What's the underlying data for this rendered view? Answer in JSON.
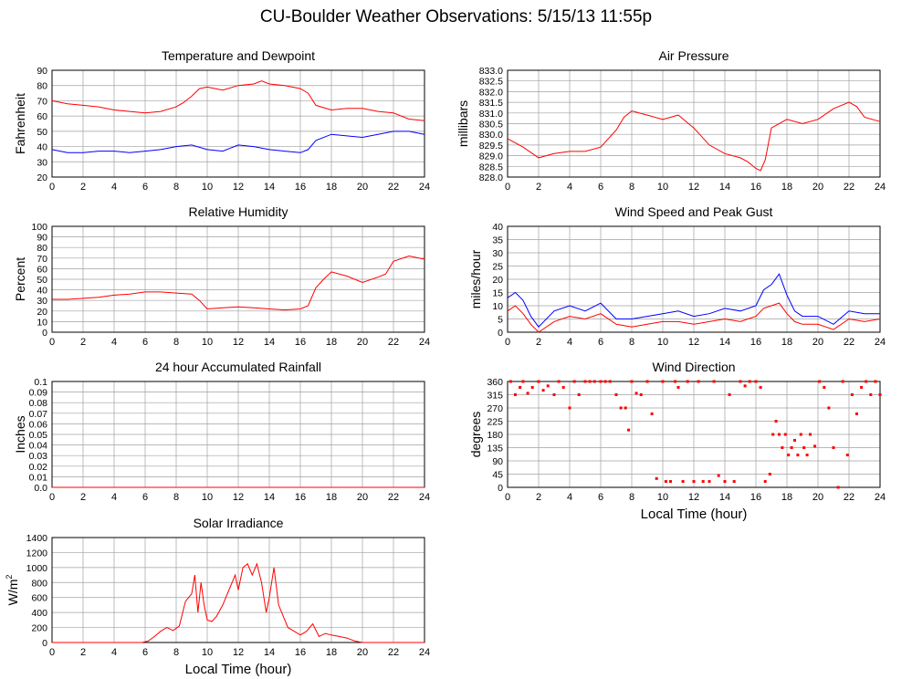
{
  "title": "CU-Boulder Weather Observations: 5/15/13 11:55p",
  "colors": {
    "red": "#ff0000",
    "blue": "#0000ff",
    "grid": "#a0a0a0",
    "axis": "#000000"
  },
  "chart_data": [
    {
      "id": "temperature",
      "type": "line",
      "title": "Temperature and Dewpoint",
      "ylabel": "Fahrenheit",
      "xlabel": "",
      "xlim": [
        0,
        24
      ],
      "ylim": [
        20,
        90
      ],
      "yticks": [
        "20",
        "30",
        "40",
        "50",
        "60",
        "70",
        "80",
        "90"
      ],
      "xticks": [
        "0",
        "2",
        "4",
        "6",
        "8",
        "10",
        "12",
        "14",
        "16",
        "18",
        "20",
        "22",
        "24"
      ],
      "grid": true,
      "series": [
        {
          "color": "#ff0000",
          "x": [
            0,
            1,
            2,
            3,
            4,
            5,
            6,
            7,
            8,
            8.5,
            9,
            9.5,
            10,
            11,
            12,
            13,
            13.5,
            14,
            15,
            16,
            16.5,
            17,
            18,
            19,
            20,
            21,
            22,
            23,
            24
          ],
          "y": [
            70,
            68,
            67,
            66,
            64,
            63,
            62,
            63,
            66,
            69,
            73,
            78,
            79,
            77,
            80,
            81,
            83,
            81,
            80,
            78,
            75,
            67,
            64,
            65,
            65,
            63,
            62,
            58,
            57
          ]
        },
        {
          "color": "#0000ff",
          "x": [
            0,
            1,
            2,
            3,
            4,
            5,
            6,
            7,
            8,
            9,
            10,
            11,
            12,
            13,
            14,
            15,
            16,
            16.5,
            17,
            18,
            19,
            20,
            21,
            22,
            23,
            24
          ],
          "y": [
            38,
            36,
            36,
            37,
            37,
            36,
            37,
            38,
            40,
            41,
            38,
            37,
            41,
            40,
            38,
            37,
            36,
            38,
            44,
            48,
            47,
            46,
            48,
            50,
            50,
            48
          ]
        }
      ]
    },
    {
      "id": "pressure",
      "type": "line",
      "title": "Air Pressure",
      "ylabel": "millibars",
      "xlabel": "",
      "xlim": [
        0,
        24
      ],
      "ylim": [
        828.0,
        833.0
      ],
      "yticks": [
        "828.0",
        "828.5",
        "829.0",
        "829.5",
        "830.0",
        "830.5",
        "831.0",
        "831.5",
        "832.0",
        "832.5",
        "833.0"
      ],
      "xticks": [
        "0",
        "2",
        "4",
        "6",
        "8",
        "10",
        "12",
        "14",
        "16",
        "18",
        "20",
        "22",
        "24"
      ],
      "grid": true,
      "series": [
        {
          "color": "#ff0000",
          "x": [
            0,
            1,
            2,
            3,
            4,
            5,
            6,
            7,
            7.5,
            8,
            9,
            10,
            11,
            12,
            13,
            14,
            15,
            15.5,
            16,
            16.3,
            16.6,
            17,
            18,
            19,
            20,
            21,
            22,
            22.5,
            23,
            24
          ],
          "y": [
            829.8,
            829.4,
            828.9,
            829.1,
            829.2,
            829.2,
            829.4,
            830.2,
            830.8,
            831.1,
            830.9,
            830.7,
            830.9,
            830.3,
            829.5,
            829.1,
            828.9,
            828.7,
            828.4,
            828.3,
            828.8,
            830.3,
            830.7,
            830.5,
            830.7,
            831.2,
            831.5,
            831.3,
            830.8,
            830.6
          ]
        }
      ]
    },
    {
      "id": "humidity",
      "type": "line",
      "title": "Relative Humidity",
      "ylabel": "Percent",
      "xlabel": "",
      "xlim": [
        0,
        24
      ],
      "ylim": [
        0,
        100
      ],
      "yticks": [
        "0",
        "10",
        "20",
        "30",
        "40",
        "50",
        "60",
        "70",
        "80",
        "90",
        "100"
      ],
      "xticks": [
        "0",
        "2",
        "4",
        "6",
        "8",
        "10",
        "12",
        "14",
        "16",
        "18",
        "20",
        "22",
        "24"
      ],
      "grid": true,
      "series": [
        {
          "color": "#ff0000",
          "x": [
            0,
            1,
            2,
            3,
            4,
            5,
            6,
            7,
            8,
            9,
            9.5,
            10,
            11,
            12,
            13,
            14,
            15,
            16,
            16.5,
            17,
            17.5,
            18,
            19,
            20,
            21,
            21.5,
            22,
            23,
            24
          ],
          "y": [
            31,
            31,
            32,
            33,
            35,
            36,
            38,
            38,
            37,
            36,
            30,
            22,
            23,
            24,
            23,
            22,
            21,
            22,
            25,
            42,
            50,
            57,
            53,
            47,
            52,
            55,
            67,
            72,
            69
          ]
        }
      ]
    },
    {
      "id": "wind",
      "type": "line",
      "title": "Wind Speed and Peak Gust",
      "ylabel": "miles/hour",
      "xlabel": "",
      "xlim": [
        0,
        24
      ],
      "ylim": [
        0,
        40
      ],
      "yticks": [
        "0",
        "5",
        "10",
        "15",
        "20",
        "25",
        "30",
        "35",
        "40"
      ],
      "xticks": [
        "0",
        "2",
        "4",
        "6",
        "8",
        "10",
        "12",
        "14",
        "16",
        "18",
        "20",
        "22",
        "24"
      ],
      "grid": true,
      "series": [
        {
          "color": "#0000ff",
          "x": [
            0,
            0.5,
            1,
            1.5,
            2,
            3,
            4,
            5,
            6,
            7,
            8,
            9,
            10,
            11,
            12,
            13,
            14,
            15,
            16,
            16.5,
            17,
            17.5,
            18,
            18.5,
            19,
            20,
            21,
            22,
            23,
            24
          ],
          "y": [
            13,
            15,
            12,
            6,
            2,
            8,
            10,
            8,
            11,
            5,
            5,
            6,
            7,
            8,
            6,
            7,
            9,
            8,
            10,
            16,
            18,
            22,
            14,
            8,
            6,
            6,
            3,
            8,
            7,
            7
          ]
        },
        {
          "color": "#ff0000",
          "x": [
            0,
            0.5,
            1,
            1.5,
            2,
            3,
            4,
            5,
            6,
            7,
            8,
            9,
            10,
            11,
            12,
            13,
            14,
            15,
            16,
            16.5,
            17,
            17.5,
            18,
            18.5,
            19,
            20,
            21,
            22,
            23,
            24
          ],
          "y": [
            8,
            10,
            7,
            3,
            0,
            4,
            6,
            5,
            7,
            3,
            2,
            3,
            4,
            4,
            3,
            4,
            5,
            4,
            6,
            9,
            10,
            11,
            7,
            4,
            3,
            3,
            1,
            5,
            4,
            5
          ]
        }
      ]
    },
    {
      "id": "rainfall",
      "type": "line",
      "title": "24 hour Accumulated Rainfall",
      "ylabel": "Inches",
      "xlabel": "",
      "xlim": [
        0,
        24
      ],
      "ylim": [
        0,
        0.1
      ],
      "yticks": [
        "0.0",
        "0.01",
        "0.02",
        "0.03",
        "0.04",
        "0.05",
        "0.06",
        "0.07",
        "0.08",
        "0.09",
        "0.1"
      ],
      "xticks": [
        "0",
        "2",
        "4",
        "6",
        "8",
        "10",
        "12",
        "14",
        "16",
        "18",
        "20",
        "22",
        "24"
      ],
      "grid": true,
      "series": [
        {
          "color": "#ff0000",
          "x": [
            0,
            24
          ],
          "y": [
            0,
            0
          ]
        }
      ]
    },
    {
      "id": "direction",
      "type": "scatter",
      "title": "Wind Direction",
      "ylabel": "degrees",
      "xlabel": "Local Time (hour)",
      "xlim": [
        0,
        24
      ],
      "ylim": [
        0,
        360
      ],
      "yticks": [
        "0",
        "45",
        "90",
        "135",
        "180",
        "225",
        "270",
        "315",
        "360"
      ],
      "xticks": [
        "0",
        "2",
        "4",
        "6",
        "8",
        "10",
        "12",
        "14",
        "16",
        "18",
        "20",
        "22",
        "24"
      ],
      "grid": true,
      "series": [
        {
          "color": "#ff0000",
          "x": [
            0.2,
            0.5,
            0.8,
            1,
            1.3,
            1.6,
            2,
            2.3,
            2.6,
            3,
            3.3,
            3.6,
            4,
            4.3,
            4.6,
            5,
            5.3,
            5.6,
            6,
            6.3,
            6.6,
            7,
            7.3,
            7.6,
            7.8,
            8,
            8.3,
            8.6,
            9,
            9.3,
            9.6,
            10,
            10.2,
            10.5,
            10.8,
            11,
            11.3,
            11.6,
            12,
            12.3,
            12.6,
            13,
            13.3,
            13.6,
            14,
            14.3,
            14.6,
            15,
            15.3,
            15.6,
            16,
            16.3,
            16.6,
            16.9,
            17.1,
            17.3,
            17.5,
            17.7,
            17.9,
            18.1,
            18.3,
            18.5,
            18.7,
            18.9,
            19.1,
            19.3,
            19.5,
            19.8,
            20.1,
            20.4,
            20.7,
            21,
            21.3,
            21.6,
            21.9,
            22.2,
            22.5,
            22.8,
            23.1,
            23.4,
            23.7,
            24
          ],
          "y": [
            360,
            315,
            340,
            360,
            320,
            340,
            360,
            330,
            345,
            315,
            360,
            340,
            270,
            360,
            315,
            360,
            360,
            360,
            360,
            360,
            360,
            315,
            270,
            270,
            195,
            360,
            320,
            315,
            360,
            250,
            30,
            360,
            20,
            20,
            360,
            340,
            20,
            360,
            20,
            360,
            20,
            20,
            360,
            40,
            20,
            315,
            20,
            360,
            345,
            360,
            360,
            340,
            20,
            45,
            180,
            225,
            180,
            135,
            180,
            110,
            135,
            160,
            110,
            180,
            135,
            110,
            180,
            140,
            360,
            340,
            270,
            135,
            0,
            360,
            110,
            315,
            250,
            340,
            360,
            315,
            360,
            315
          ]
        }
      ]
    },
    {
      "id": "solar",
      "type": "line",
      "title": "Solar Irradiance",
      "ylabel": "W/m",
      "ylabel_sup": "2",
      "xlabel": "Local Time (hour)",
      "xlim": [
        0,
        24
      ],
      "ylim": [
        0,
        1400
      ],
      "yticks": [
        "0",
        "200",
        "400",
        "600",
        "800",
        "1000",
        "1200",
        "1400"
      ],
      "xticks": [
        "0",
        "2",
        "4",
        "6",
        "8",
        "10",
        "12",
        "14",
        "16",
        "18",
        "20",
        "22",
        "24"
      ],
      "grid": true,
      "series": [
        {
          "color": "#ff0000",
          "x": [
            0,
            5.8,
            6.2,
            6.6,
            7,
            7.4,
            7.8,
            8.2,
            8.6,
            9,
            9.2,
            9.4,
            9.6,
            9.8,
            10,
            10.3,
            10.6,
            11,
            11.4,
            11.8,
            12,
            12.3,
            12.6,
            12.9,
            13.2,
            13.5,
            13.8,
            14,
            14.3,
            14.6,
            14.9,
            15.2,
            15.6,
            16,
            16.4,
            16.8,
            17.2,
            17.6,
            18,
            18.5,
            19,
            19.5,
            20,
            24
          ],
          "y": [
            0,
            0,
            20,
            80,
            150,
            200,
            160,
            220,
            550,
            650,
            900,
            400,
            800,
            500,
            300,
            280,
            350,
            500,
            700,
            900,
            700,
            1000,
            1050,
            900,
            1050,
            800,
            400,
            600,
            1000,
            500,
            350,
            200,
            150,
            100,
            150,
            250,
            80,
            120,
            100,
            80,
            60,
            20,
            0,
            0
          ]
        }
      ]
    }
  ]
}
